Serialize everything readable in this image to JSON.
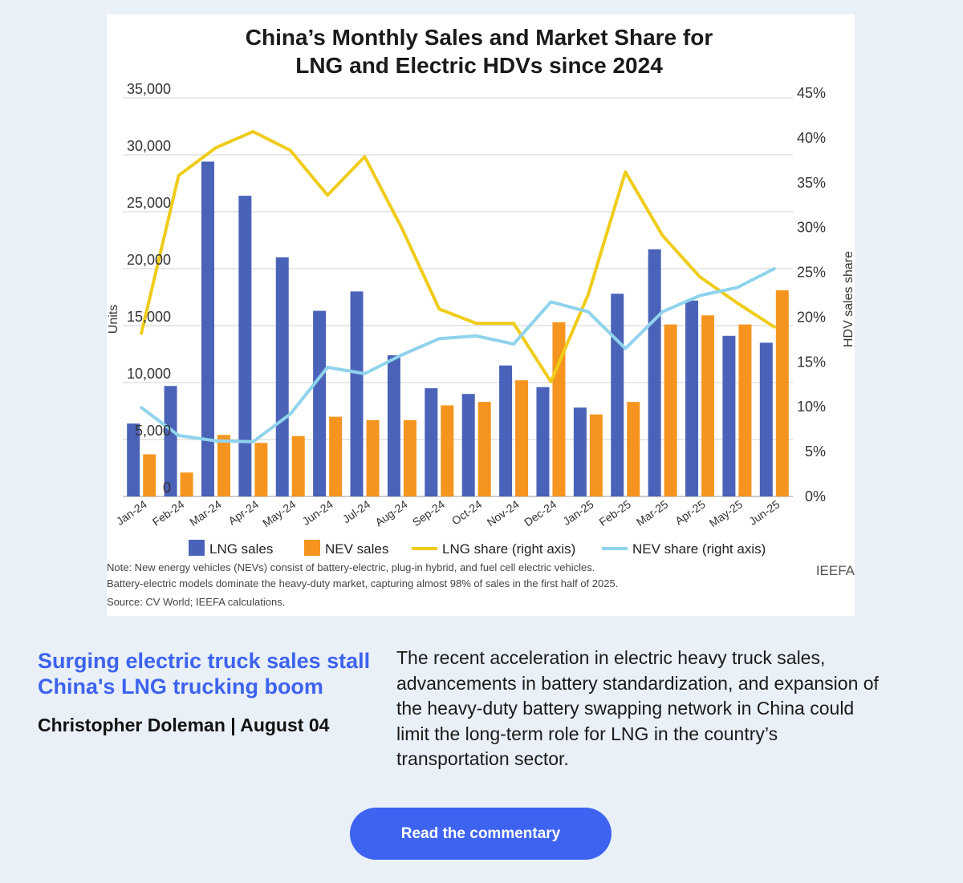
{
  "chart_data": {
    "type": "bar",
    "title_lines": [
      "China’s Monthly Sales and Market Share for",
      "LNG and Electric HDVs since 2024"
    ],
    "categories": [
      "Jan-24",
      "Feb-24",
      "Mar-24",
      "Apr-24",
      "May-24",
      "Jun-24",
      "Jul-24",
      "Aug-24",
      "Sep-24",
      "Oct-24",
      "Nov-24",
      "Dec-24",
      "Jan-25",
      "Feb-25",
      "Mar-25",
      "Apr-25",
      "May-25",
      "Jun-25"
    ],
    "series": [
      {
        "name": "LNG sales",
        "kind": "bar",
        "axis": "left",
        "color": "#4a63b8",
        "values": [
          6400,
          9700,
          29400,
          26400,
          21000,
          16300,
          18000,
          12400,
          9500,
          9000,
          11500,
          9600,
          7800,
          17800,
          21700,
          17200,
          14100,
          13500
        ]
      },
      {
        "name": "NEV sales",
        "kind": "bar",
        "axis": "left",
        "color": "#f5951f",
        "values": [
          3700,
          2100,
          5400,
          4700,
          5300,
          7000,
          6700,
          6700,
          8000,
          8300,
          10200,
          15300,
          7200,
          8300,
          15100,
          15900,
          15100,
          18100
        ]
      },
      {
        "name": "LNG share (right axis)",
        "kind": "line",
        "axis": "right",
        "color": "#f0cc1a",
        "values": [
          18.2,
          35.8,
          38.9,
          40.7,
          38.6,
          33.6,
          37.9,
          29.9,
          20.9,
          19.3,
          19.3,
          12.8,
          22.5,
          36.2,
          29.1,
          24.5,
          21.6,
          18.9
        ]
      },
      {
        "name": "NEV share (right axis)",
        "kind": "line",
        "axis": "right",
        "color": "#8fd3ec",
        "values": [
          9.9,
          6.8,
          6.2,
          6.1,
          9.2,
          14.4,
          13.7,
          15.8,
          17.6,
          17.9,
          17.0,
          21.7,
          20.6,
          16.5,
          20.6,
          22.4,
          23.3,
          25.4
        ]
      }
    ],
    "ylabel": "Units",
    "y2label": "HDV sales share",
    "ylim": [
      0,
      35000
    ],
    "y2lim": [
      0,
      45
    ],
    "yticks": [
      "0",
      "5,000",
      "10,000",
      "15,000",
      "20,000",
      "25,000",
      "30,000",
      "35,000"
    ],
    "y2ticks": [
      "0%",
      "5%",
      "10%",
      "15%",
      "20%",
      "25%",
      "30%",
      "35%",
      "40%",
      "45%"
    ],
    "grid": true,
    "legend_position": "bottom",
    "note_lines": [
      "Note: New energy vehicles (NEVs) consist of battery-electric, plug-in hybrid, and fuel cell electric vehicles.",
      "Battery-electric models dominate the heavy-duty market, capturing almost 98% of sales in the first half of 2025."
    ],
    "source": "Source: CV World; IEEFA calculations.",
    "brand": "IEEFA"
  },
  "article": {
    "headline_lines": [
      "Surging electric truck sales stall",
      "China's LNG trucking boom"
    ],
    "byline": "Christopher Doleman | August 04",
    "summary_lines": [
      "The recent acceleration in electric heavy truck sales,",
      "advancements in battery standardization, and expansion of",
      "the heavy-duty battery swapping network in China could",
      "limit the long-term role for LNG in the country’s",
      "transportation sector."
    ],
    "cta_label": "Read the commentary"
  },
  "colors": {
    "background": "#eaf0f8",
    "accent": "#3d63f0"
  }
}
